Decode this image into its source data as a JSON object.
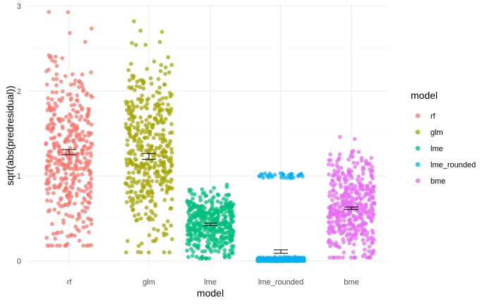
{
  "chart_data": {
    "type": "scatter",
    "subtype": "jitter-strip-with-mean-errorbars",
    "xlabel": "model",
    "ylabel": "sqrt(abs(predresidual))",
    "categories": [
      "rf",
      "glm",
      "lme",
      "lme_rounded",
      "bme"
    ],
    "ylim": [
      -0.07,
      3.02
    ],
    "yticks": [
      0,
      1,
      2,
      3
    ],
    "grid": true,
    "legend": {
      "title": "model",
      "position": "right"
    },
    "series": [
      {
        "name": "rf",
        "color": "#F8766D",
        "mean": 1.28,
        "se": 0.03,
        "ymin": 0.18,
        "ymax": 2.93,
        "n": 420
      },
      {
        "name": "glm",
        "color": "#A3A500",
        "mean": 1.23,
        "se": 0.035,
        "ymin": 0.1,
        "ymax": 2.82,
        "n": 420
      },
      {
        "name": "lme",
        "color": "#00BF7D",
        "mean": 0.43,
        "se": 0.015,
        "ymin": 0.03,
        "ymax": 0.98,
        "n": 420
      },
      {
        "name": "lme_rounded",
        "color": "#00B0F6",
        "mean": 0.11,
        "se": 0.02,
        "ymin": 0.0,
        "ymax": 1.04,
        "n": 420
      },
      {
        "name": "bme",
        "color": "#E76BF3",
        "mean": 0.62,
        "se": 0.015,
        "ymin": 0.04,
        "ymax": 1.65,
        "n": 420
      }
    ]
  }
}
